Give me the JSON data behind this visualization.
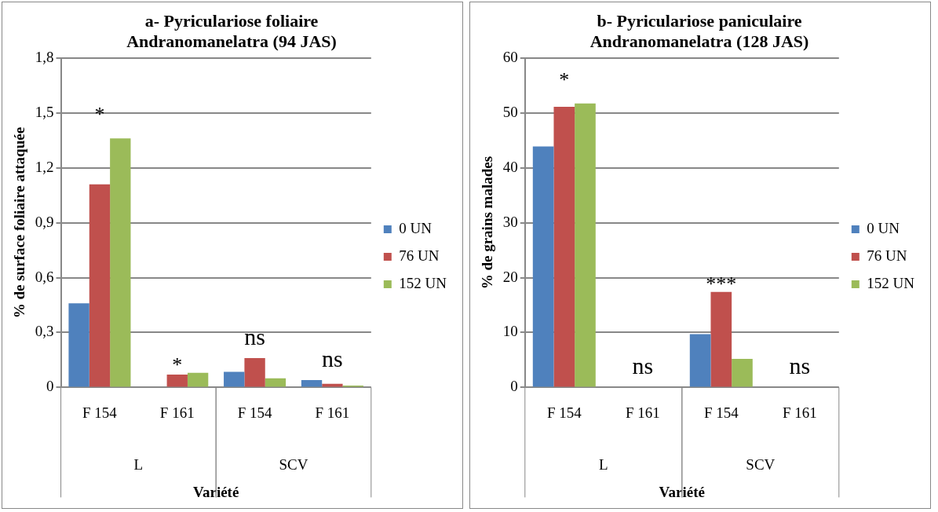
{
  "chart_data": [
    {
      "type": "bar",
      "title": "a- Pyriculariose foliaire\nAndranomanelatra (94 JAS)",
      "xlabel": "Variété",
      "ylabel": "% de surface foliaire attaquée",
      "categories": [
        "F 154",
        "F 161",
        "F 154",
        "F 161"
      ],
      "series": [
        {
          "name": "0 UN",
          "color": "#4f81bd",
          "values": [
            0.46,
            0,
            0.085,
            0.04
          ]
        },
        {
          "name": "76 UN",
          "color": "#c0504d",
          "values": [
            1.11,
            0.07,
            0.16,
            0.02
          ]
        },
        {
          "name": "152 UN",
          "color": "#9bbb59",
          "values": [
            1.36,
            0.08,
            0.05,
            0.01
          ]
        }
      ],
      "ylim": [
        0,
        1.8
      ],
      "yticks": [
        0,
        {
          "value": 0.3,
          "label": "0,3"
        },
        {
          "value": 0.6,
          "label": "0,6"
        },
        {
          "value": 0.9,
          "label": "0,9"
        },
        {
          "value": 1.2,
          "label": "1,2"
        },
        {
          "value": 1.5,
          "label": "1,5"
        },
        {
          "value": 1.8,
          "label": "1,8"
        }
      ],
      "grid": "y",
      "legend": "right",
      "annotations": [
        "*",
        "*",
        "ns",
        "ns",
        "L",
        "SCV"
      ]
    },
    {
      "type": "bar",
      "title": "b- Pyriculariose paniculaire\nAndranomanelatra (128 JAS)",
      "xlabel": "Variété",
      "ylabel": "% de grains malades",
      "categories": [
        "F 154",
        "F 161",
        "F 154",
        "F 161"
      ],
      "series": [
        {
          "name": "0 UN",
          "color": "#4f81bd",
          "values": [
            43.9,
            0,
            9.7,
            0
          ]
        },
        {
          "name": "76 UN",
          "color": "#c0504d",
          "values": [
            51.1,
            0,
            17.4,
            0
          ]
        },
        {
          "name": "152 UN",
          "color": "#9bbb59",
          "values": [
            51.7,
            0,
            5.2,
            0
          ]
        }
      ],
      "ylim": [
        0,
        60
      ],
      "yticks": [
        0,
        10,
        20,
        30,
        40,
        50,
        60
      ],
      "grid": "y",
      "legend": "right",
      "annotations": [
        "*",
        "ns",
        "***",
        "ns",
        "L",
        "SCV"
      ]
    }
  ]
}
